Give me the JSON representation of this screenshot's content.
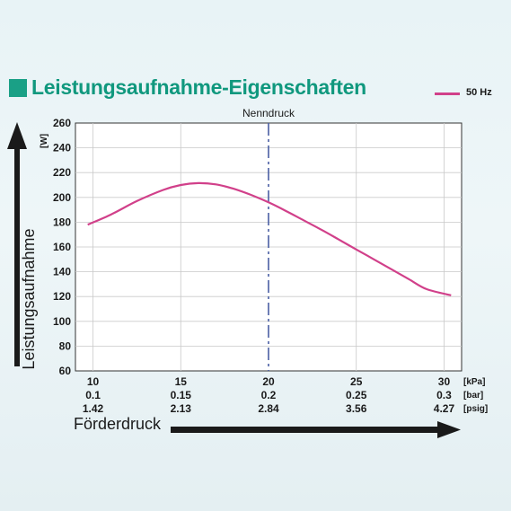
{
  "title": "Leistungsaufnahme-Eigenschaften",
  "colors": {
    "accent": "#1aa086",
    "title": "#10987e",
    "series": "#d1408a",
    "ref_line": "#4a5fa3"
  },
  "chart_data": {
    "type": "line",
    "title": "Leistungsaufnahme-Eigenschaften",
    "ylabel": "Leistungsaufnahme",
    "yunit": "[W]",
    "xlabel": "Förderdruck",
    "ylim": [
      60,
      260
    ],
    "yticks": [
      60,
      80,
      100,
      120,
      140,
      160,
      180,
      200,
      220,
      240,
      260
    ],
    "xlim": [
      9,
      31
    ],
    "grid": true,
    "legend_position": "top-right",
    "x_tick_rows": [
      {
        "unit": "[kPa]",
        "labels": [
          "10",
          "15",
          "20",
          "25",
          "30"
        ],
        "values": [
          10,
          15,
          20,
          25,
          30
        ]
      },
      {
        "unit": "[bar]",
        "labels": [
          "0.1",
          "0.15",
          "0.2",
          "0.25",
          "0.3"
        ]
      },
      {
        "unit": "[psig]",
        "labels": [
          "1.42",
          "2.13",
          "2.84",
          "3.56",
          "4.27"
        ]
      }
    ],
    "reference_line": {
      "x": 20,
      "label": "Nenndruck"
    },
    "series": [
      {
        "name": "50 Hz",
        "x": [
          9.7,
          11,
          12.5,
          14,
          15,
          16,
          17,
          18,
          19,
          20,
          21,
          22,
          23,
          24,
          25,
          26,
          27,
          28,
          29,
          30.4
        ],
        "y": [
          178,
          186,
          197,
          206,
          210,
          211.5,
          210.5,
          207,
          202,
          196,
          189,
          181.5,
          174,
          166,
          158,
          150,
          142,
          134,
          126,
          121
        ]
      }
    ]
  }
}
